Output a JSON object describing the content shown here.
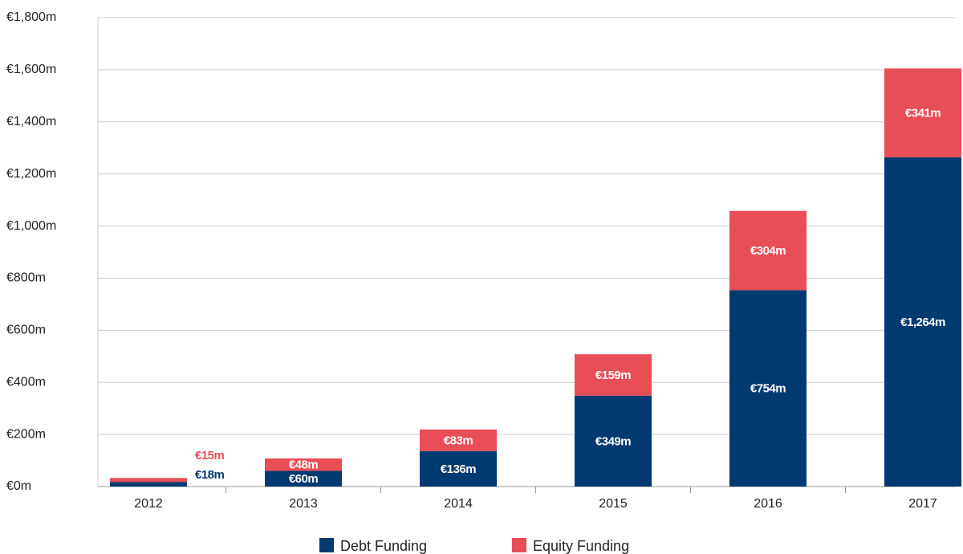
{
  "chart_data": {
    "type": "bar",
    "stacked": true,
    "categories": [
      "2012",
      "2013",
      "2014",
      "2015",
      "2016",
      "2017"
    ],
    "series": [
      {
        "name": "Debt Funding",
        "color": "#003a70",
        "values": [
          18,
          60,
          136,
          349,
          754,
          1264
        ],
        "value_labels": [
          "€18m",
          "€60m",
          "€136m",
          "€349m",
          "€754m",
          "€1,264m"
        ]
      },
      {
        "name": "Equity Funding",
        "color": "#e84e55",
        "values": [
          15,
          48,
          83,
          159,
          304,
          341
        ],
        "value_labels": [
          "€15m",
          "€48m",
          "€83m",
          "€159m",
          "€304m",
          "€341m"
        ]
      }
    ],
    "ylim": [
      0,
      1800
    ],
    "yticks": [
      {
        "value": 0,
        "label": "€0m"
      },
      {
        "value": 200,
        "label": "€200m"
      },
      {
        "value": 400,
        "label": "€400m"
      },
      {
        "value": 600,
        "label": "€600m"
      },
      {
        "value": 800,
        "label": "€800m"
      },
      {
        "value": 1000,
        "label": "€1,000m"
      },
      {
        "value": 1200,
        "label": "€1,200m"
      },
      {
        "value": 1400,
        "label": "€1,400m"
      },
      {
        "value": 1600,
        "label": "€1,600m"
      },
      {
        "value": 1800,
        "label": "€1,800m"
      }
    ],
    "grid": true,
    "legend": "bottom"
  }
}
